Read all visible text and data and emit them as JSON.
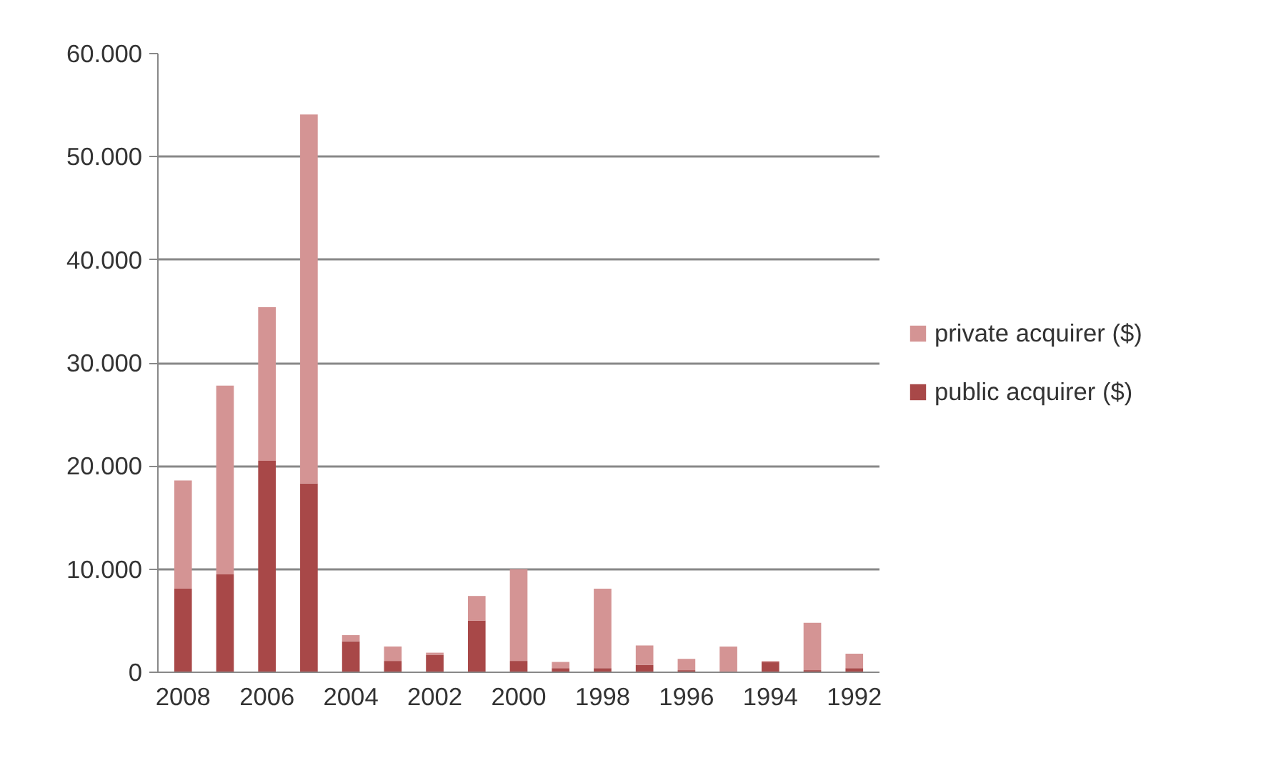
{
  "chart_data": {
    "type": "bar",
    "stacked": true,
    "categories": [
      "2008",
      null,
      "2006",
      null,
      "2004",
      null,
      "2002",
      null,
      "2000",
      null,
      "1998",
      null,
      "1996",
      null,
      "1994",
      null,
      "1992"
    ],
    "series": [
      {
        "name": "public acquirer ($)",
        "color": "#a84848",
        "values": [
          8100,
          9500,
          20500,
          18300,
          3000,
          1100,
          1700,
          5000,
          1100,
          400,
          400,
          700,
          200,
          0,
          1000,
          200,
          400
        ]
      },
      {
        "name": "private acquirer ($)",
        "color": "#d49494",
        "values": [
          10500,
          18300,
          14900,
          35800,
          600,
          1400,
          200,
          2400,
          8900,
          600,
          7700,
          1900,
          1100,
          2500,
          100,
          4600,
          1400
        ]
      }
    ],
    "ylim": [
      0,
      60000
    ],
    "yticks": [
      {
        "value": 0,
        "label": "0"
      },
      {
        "value": 10000,
        "label": "10.000"
      },
      {
        "value": 20000,
        "label": "20.000"
      },
      {
        "value": 30000,
        "label": "30.000"
      },
      {
        "value": 40000,
        "label": "40.000"
      },
      {
        "value": 50000,
        "label": "50.000"
      },
      {
        "value": 60000,
        "label": "60.000"
      }
    ],
    "grid": "y",
    "legend": "right"
  }
}
